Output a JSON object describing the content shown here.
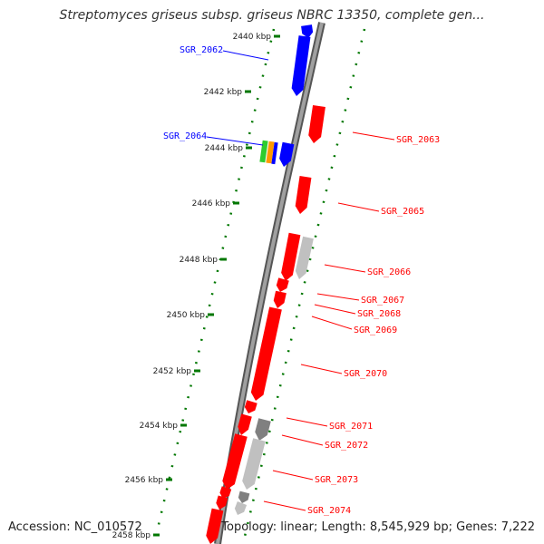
{
  "title": "Streptomyces griseus subsp. griseus NBRC 13350, complete gen...",
  "footer": {
    "accession": "Accession: NC_010572",
    "summary": "Topology: linear; Length: 8,545,929 bp; Genes: 7,222"
  },
  "scale_labels": [
    "2440 kbp",
    "2442 kbp",
    "2444 kbp",
    "2446 kbp",
    "2448 kbp",
    "2450 kbp",
    "2452 kbp",
    "2454 kbp",
    "2456 kbp",
    "2458 kbp"
  ],
  "colors": {
    "forward": "#0000ff",
    "reverse": "#ff0000",
    "backbone": "#808080",
    "ticks": "#007700",
    "gray_light": "#c0c0c0",
    "gray_dark": "#808080"
  },
  "gene_labels": [
    {
      "name": "SGR_2062",
      "strand": "forward"
    },
    {
      "name": "SGR_2063",
      "strand": "reverse"
    },
    {
      "name": "SGR_2064",
      "strand": "forward"
    },
    {
      "name": "SGR_2065",
      "strand": "reverse"
    },
    {
      "name": "SGR_2066",
      "strand": "reverse"
    },
    {
      "name": "SGR_2067",
      "strand": "reverse"
    },
    {
      "name": "SGR_2068",
      "strand": "reverse"
    },
    {
      "name": "SGR_2069",
      "strand": "reverse"
    },
    {
      "name": "SGR_2070",
      "strand": "reverse"
    },
    {
      "name": "SGR_2071",
      "strand": "reverse"
    },
    {
      "name": "SGR_2072",
      "strand": "reverse"
    },
    {
      "name": "SGR_2073",
      "strand": "reverse"
    },
    {
      "name": "SGR_2074",
      "strand": "reverse"
    }
  ]
}
